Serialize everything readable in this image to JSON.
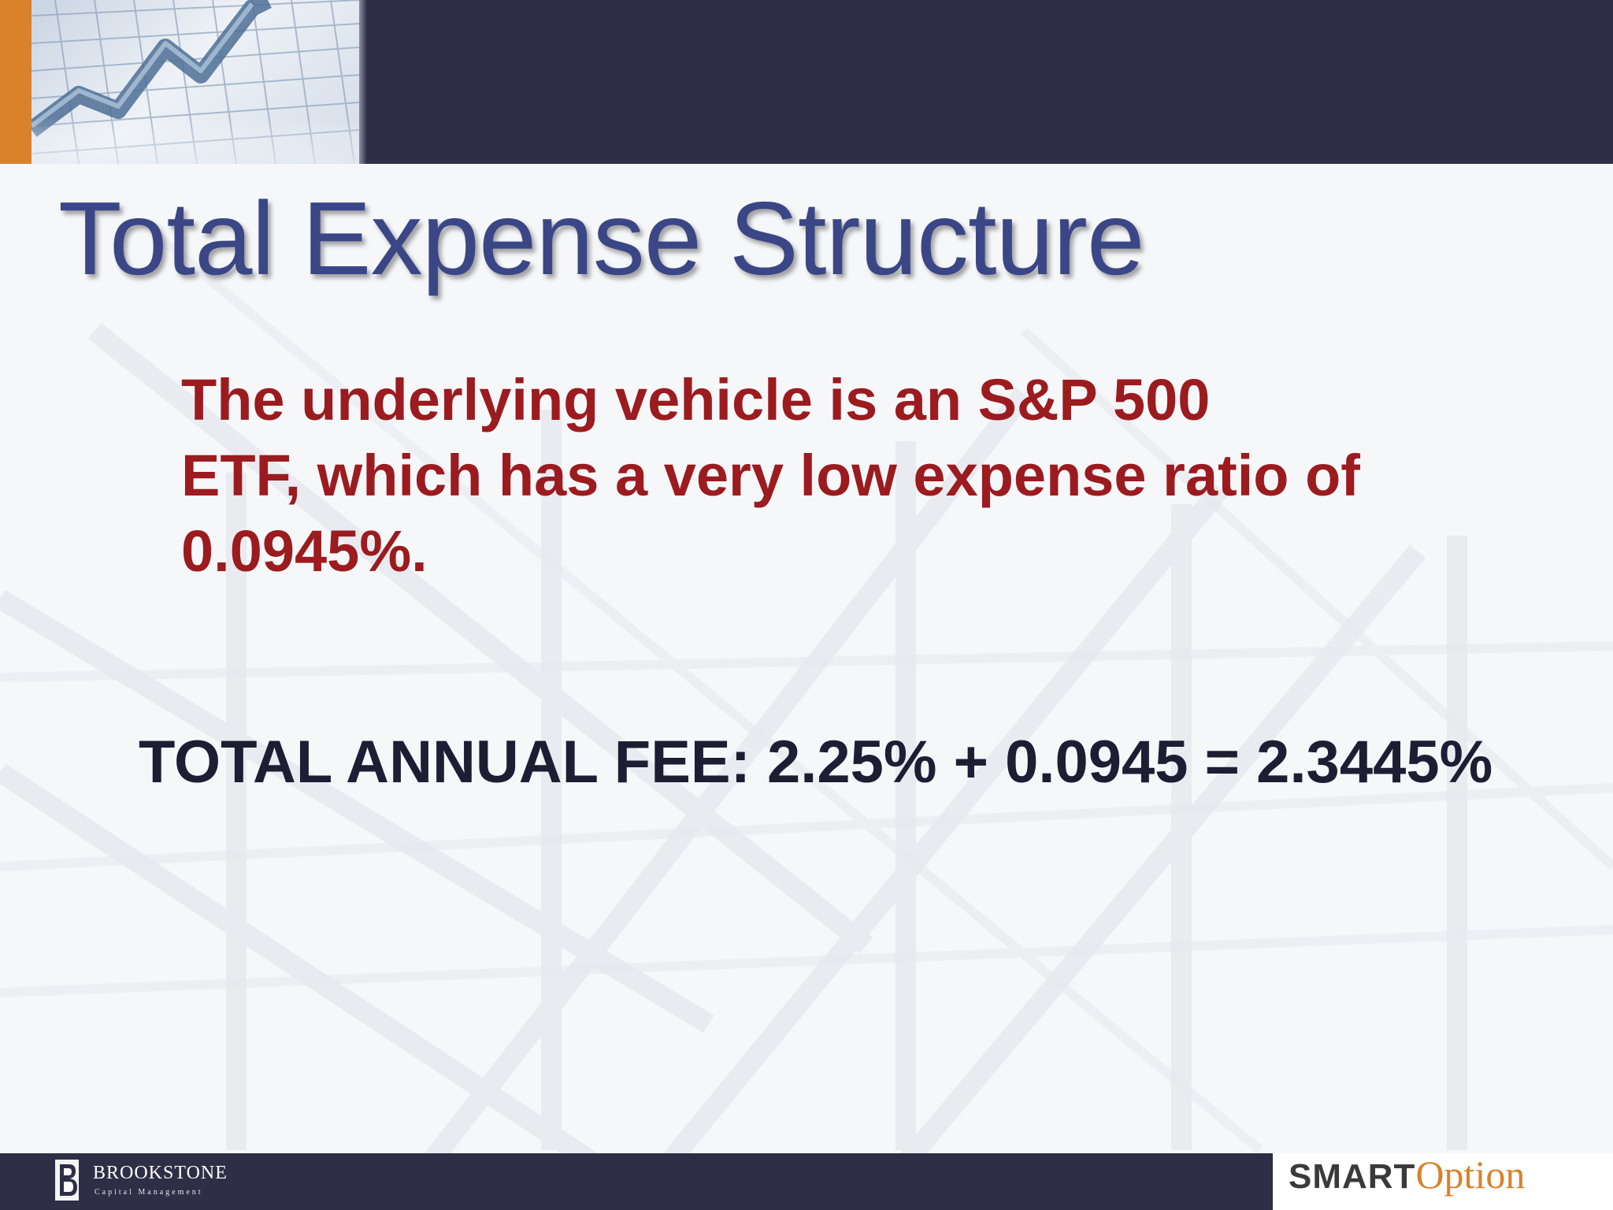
{
  "slide": {
    "title": "Total Expense Structure",
    "body_lines": [
      "The underlying vehicle is an S&P 500",
      "ETF, which has a very low expense ratio of",
      "0.0945%."
    ],
    "total_line": "TOTAL ANNUAL FEE: 2.25% + 0.0945 = 2.3445%"
  },
  "footer": {
    "left_logo": {
      "name": "BROOKSTONE",
      "tagline": "Capital Management"
    },
    "right_logo": {
      "part1": "SMART",
      "part2": "Option"
    }
  },
  "colors": {
    "header_band": "#2e2e47",
    "accent_orange": "#d9822b",
    "title_blue": "#3b4686",
    "body_red": "#9b1b1f",
    "total_text": "#1d1e33"
  },
  "icons": {
    "header_image": "rising-chart-graphic",
    "brookstone_mark": "b-monogram-logo"
  }
}
